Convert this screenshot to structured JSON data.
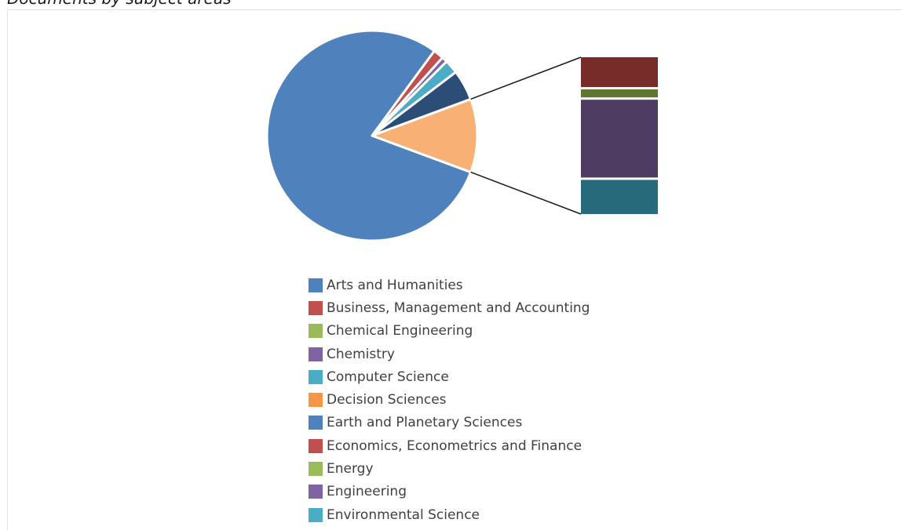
{
  "page": {
    "title": "Documents by subject areas *"
  },
  "chart_data": {
    "type": "pie",
    "title": "",
    "pie_slices": [
      {
        "label": "Arts and Humanities",
        "value": 74.5,
        "color": "#4f81bd"
      },
      {
        "label": "Business, Management and Accounting",
        "value": 1.5,
        "color": "#c0504d"
      },
      {
        "label": "Chemistry",
        "value": 0.8,
        "color": "#8064a2"
      },
      {
        "label": "Computer Science",
        "value": 2.0,
        "color": "#4bacc6"
      },
      {
        "label": "Earth and Planetary Sciences",
        "value": 4.4,
        "color": "#2c4d75"
      },
      {
        "label": "Decision Sciences",
        "value": 10.6,
        "color": "#f9b074"
      }
    ],
    "breakout": {
      "segments": [
        {
          "value": 2.05,
          "color": "#772c2a"
        },
        {
          "value": 0.55,
          "color": "#5f7530"
        },
        {
          "value": 5.35,
          "color": "#4d3b62"
        },
        {
          "value": 2.35,
          "color": "#276a7c"
        }
      ]
    },
    "legend": {
      "position": "bottom",
      "items": [
        {
          "label": "Arts and Humanities",
          "color": "#4f81bd"
        },
        {
          "label": "Business, Management and Accounting",
          "color": "#c0504d"
        },
        {
          "label": "Chemical Engineering",
          "color": "#9bbb59"
        },
        {
          "label": "Chemistry",
          "color": "#8064a2"
        },
        {
          "label": "Computer Science",
          "color": "#4bacc6"
        },
        {
          "label": "Decision Sciences",
          "color": "#f79646"
        },
        {
          "label": "Earth and Planetary Sciences",
          "color": "#4f81bd"
        },
        {
          "label": "Economics, Econometrics and Finance",
          "color": "#c0504d"
        },
        {
          "label": "Energy",
          "color": "#9bbb59"
        },
        {
          "label": "Engineering",
          "color": "#8064a2"
        },
        {
          "label": "Environmental Science",
          "color": "#4bacc6"
        }
      ]
    }
  }
}
